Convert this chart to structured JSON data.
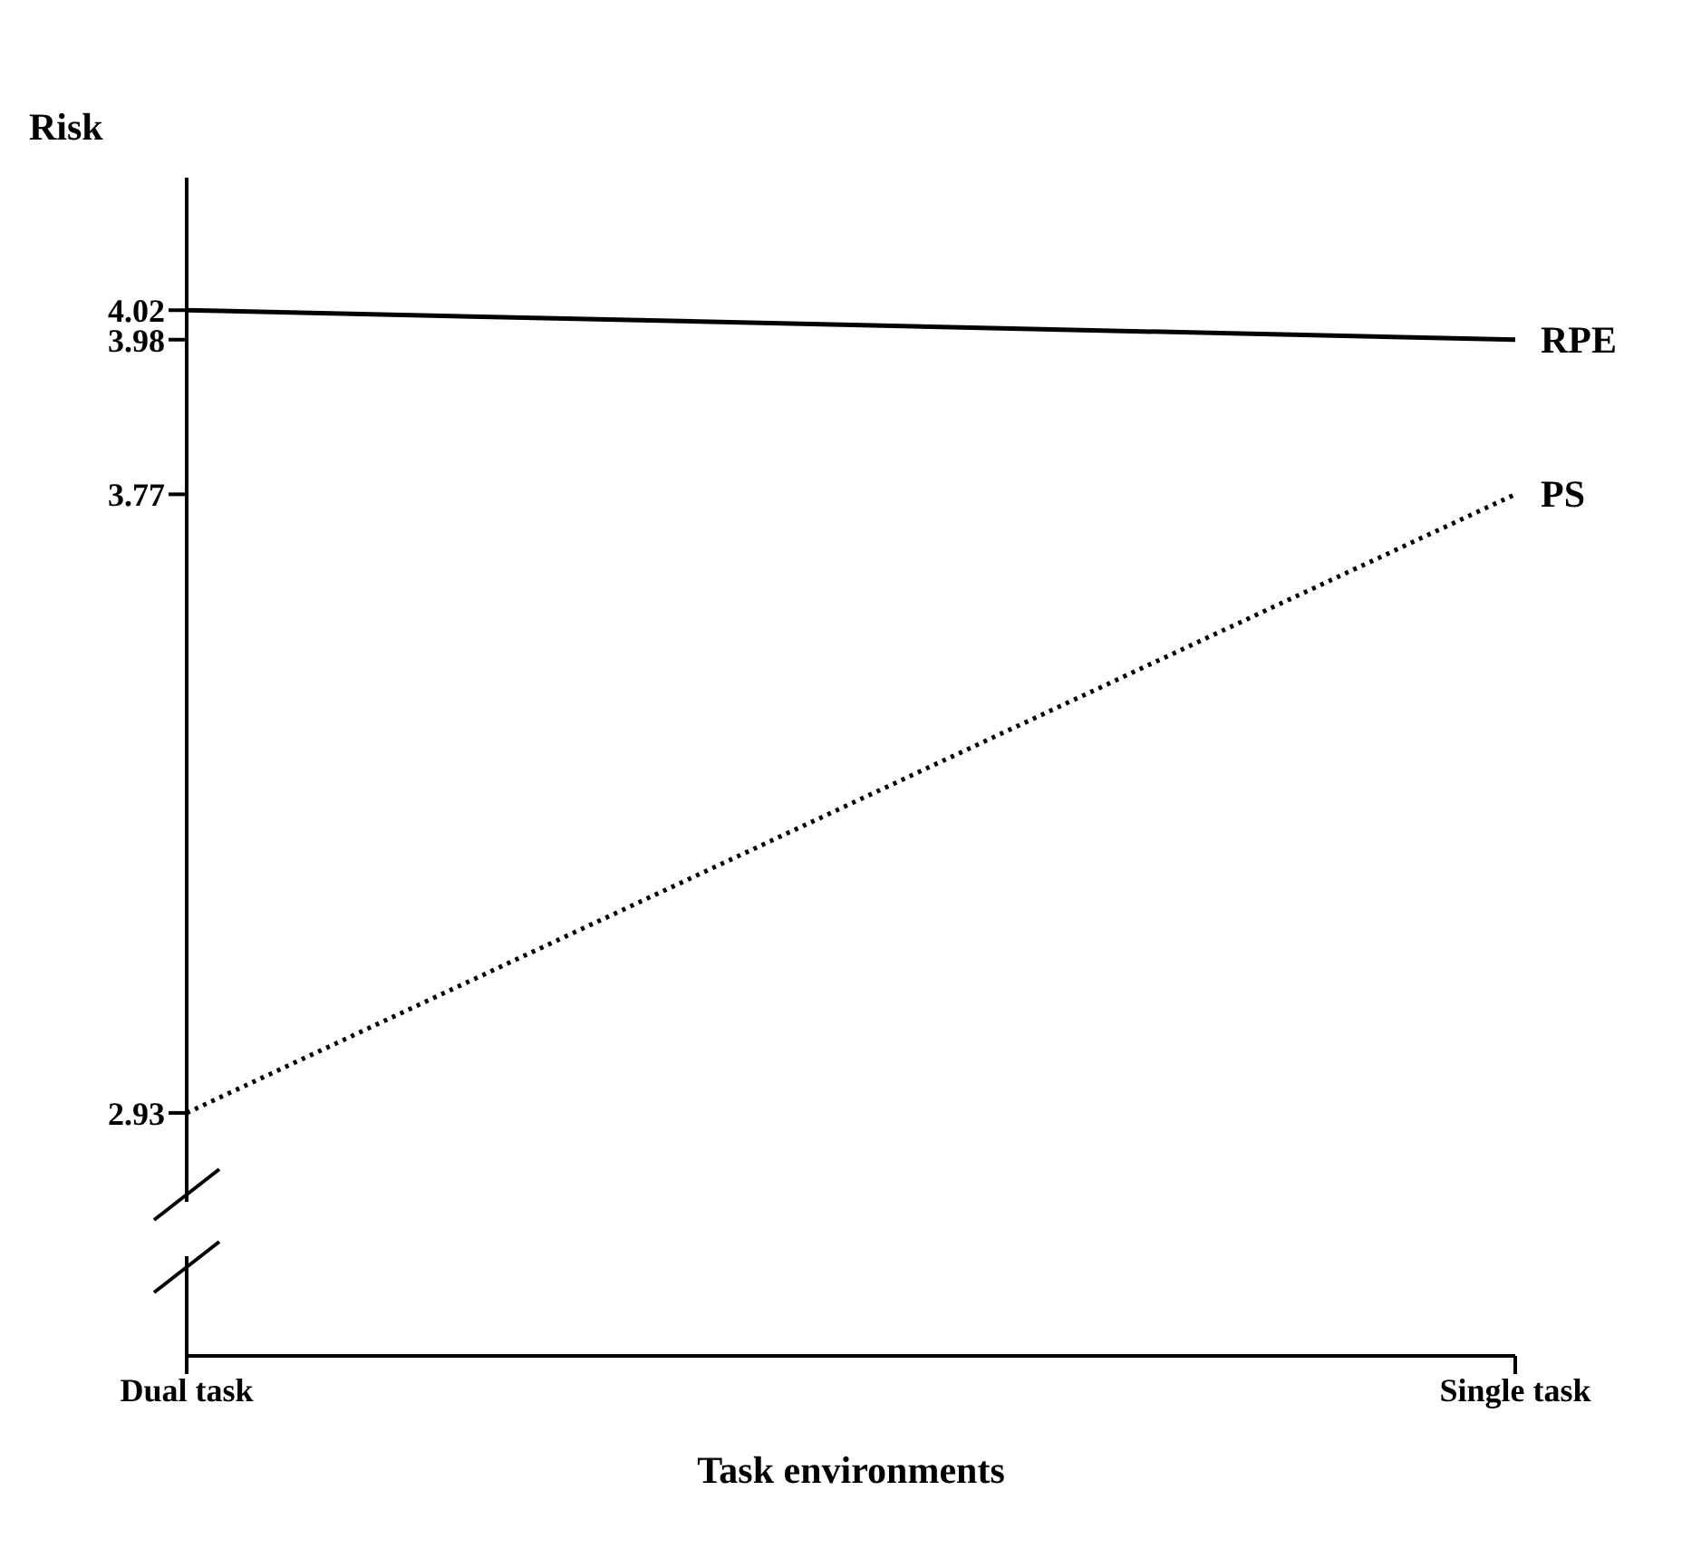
{
  "chart_data": {
    "type": "line",
    "ylabel": "Risk",
    "xlabel": "Task environments",
    "categories": [
      "Dual task",
      "Single task"
    ],
    "series": [
      {
        "name": "RPE",
        "color": "#000000",
        "line_style": "solid",
        "values": [
          4.02,
          3.98
        ]
      },
      {
        "name": "PS",
        "color": "#000000",
        "line_style": "dotted",
        "values": [
          2.93,
          3.77
        ]
      }
    ],
    "ylim": [
      2.6,
      4.2
    ],
    "yticks": [
      2.93,
      3.77,
      3.98,
      4.02
    ]
  }
}
